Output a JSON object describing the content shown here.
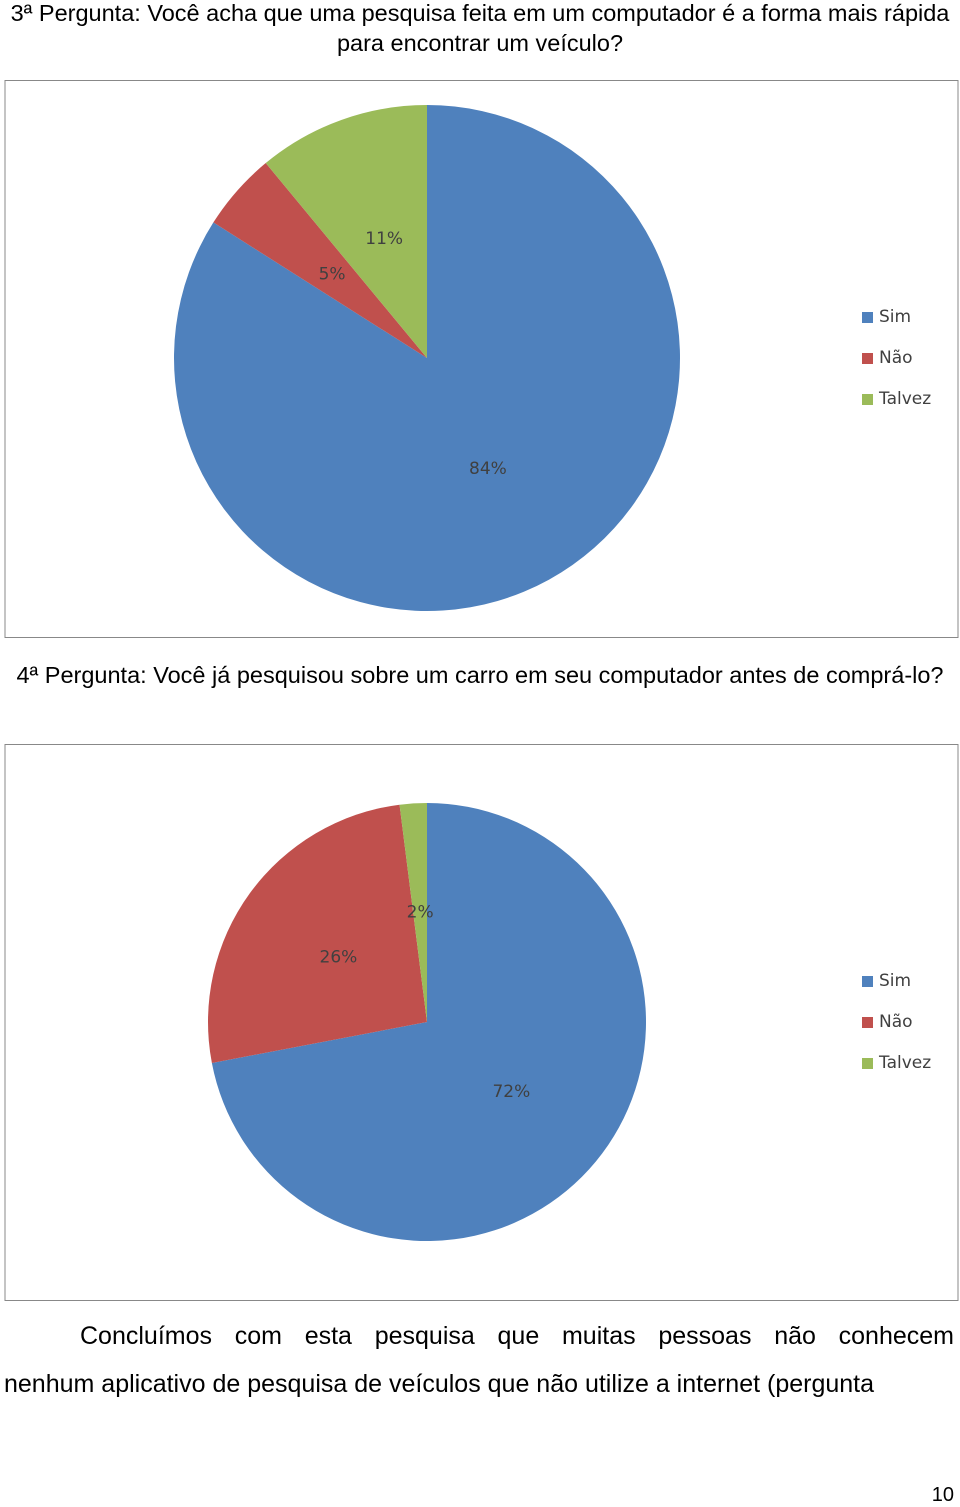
{
  "chart_data": [
    {
      "type": "pie",
      "title": "3ª Pergunta: Você acha que uma pesquisa feita em um computador é a forma mais rápida para encontrar um veículo?",
      "categories": [
        "Sim",
        "Não",
        "Talvez"
      ],
      "values": [
        84,
        5,
        11
      ],
      "value_labels": [
        "84%",
        "5%",
        "11%"
      ],
      "colors": [
        "#4f81bd",
        "#c0504d",
        "#9bbb59"
      ],
      "legend": "right"
    },
    {
      "type": "pie",
      "title": "4ª Pergunta: Você já pesquisou sobre um carro em seu computador antes de comprá-lo?",
      "categories": [
        "Sim",
        "Não",
        "Talvez"
      ],
      "values": [
        72,
        26,
        2
      ],
      "value_labels": [
        "72%",
        "26%",
        "2%"
      ],
      "colors": [
        "#4f81bd",
        "#c0504d",
        "#9bbb59"
      ],
      "legend": "right"
    }
  ],
  "conclusion": [
    "Concluímos com esta pesquisa que muitas pessoas não conhecem",
    "nenhum aplicativo de pesquisa de veículos que não utilize a internet (pergunta"
  ],
  "page_number": "10"
}
